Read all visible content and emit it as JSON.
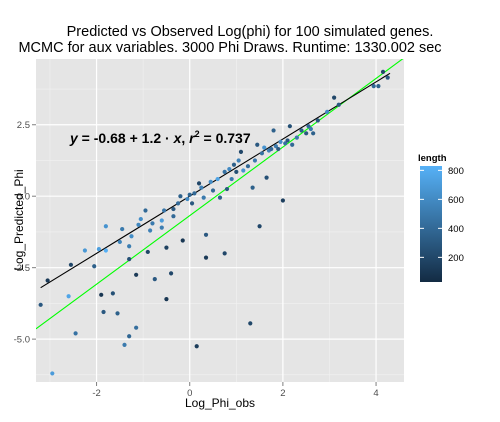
{
  "chart_data": {
    "type": "scatter",
    "title": "Predicted vs Observed Log(phi) for 100 simulated genes.",
    "subtitle": "MCMC for aux variables. 3000 Phi Draws. Runtime: 1330.002 sec",
    "xlabel": "Log_Phi_obs",
    "ylabel": "Log_Predicted_Phi",
    "xlim": [
      -3.3,
      4.6
    ],
    "ylim": [
      -6.5,
      4.8
    ],
    "x_ticks": [
      -2,
      0,
      2,
      4
    ],
    "x_tick_labels": [
      "-2",
      "0",
      "2",
      "4"
    ],
    "y_ticks": [
      -5.0,
      -2.5,
      0.0,
      2.5
    ],
    "y_tick_labels": [
      "-5.0",
      "-2.5",
      "0.0",
      "2.5"
    ],
    "grid": true,
    "legend_position": "right",
    "color_scale": {
      "title": "length",
      "min": 30,
      "max": 830,
      "ticks": [
        200,
        400,
        600,
        800
      ],
      "tick_labels": [
        "200",
        "400",
        "600",
        "800"
      ],
      "low_color": "#132b43",
      "high_color": "#56b1f7"
    },
    "annotation": {
      "y_sym": "y",
      "eq_sign": " = ",
      "intercept": "-0.68",
      "plus": " + ",
      "slope": "1.2",
      "dot": " · ",
      "x_sym": "x",
      "comma": ",  ",
      "r_sym": "r",
      "sup": "2",
      "r2": " = 0.737"
    },
    "lines": [
      {
        "kind": "regression_fit",
        "color": "#00ff00",
        "intercept": -0.68,
        "slope": 1.2,
        "x_range": [
          -3.3,
          4.6
        ]
      },
      {
        "kind": "identity",
        "color": "#000000",
        "intercept": 0,
        "slope": 1,
        "x_range": [
          -3.2,
          4.3
        ]
      }
    ],
    "points": [
      {
        "x": -3.2,
        "y": -3.8,
        "length": 300
      },
      {
        "x": -3.05,
        "y": -2.95,
        "length": 120
      },
      {
        "x": -2.95,
        "y": -6.2,
        "length": 700
      },
      {
        "x": -2.6,
        "y": -3.5,
        "length": 760
      },
      {
        "x": -2.55,
        "y": -2.4,
        "length": 200
      },
      {
        "x": -2.45,
        "y": -4.8,
        "length": 450
      },
      {
        "x": -2.25,
        "y": -1.9,
        "length": 680
      },
      {
        "x": -2.05,
        "y": -2.45,
        "length": 350
      },
      {
        "x": -1.95,
        "y": -1.85,
        "length": 720
      },
      {
        "x": -1.9,
        "y": -3.45,
        "length": 100
      },
      {
        "x": -1.85,
        "y": -4.05,
        "length": 300
      },
      {
        "x": -1.8,
        "y": -1.9,
        "length": 820
      },
      {
        "x": -1.8,
        "y": -1.05,
        "length": 650
      },
      {
        "x": -1.65,
        "y": -3.4,
        "length": 250
      },
      {
        "x": -1.55,
        "y": -4.1,
        "length": 350
      },
      {
        "x": -1.5,
        "y": -1.6,
        "length": 560
      },
      {
        "x": -1.45,
        "y": -1.15,
        "length": 500
      },
      {
        "x": -1.4,
        "y": -5.2,
        "length": 500
      },
      {
        "x": -1.3,
        "y": -4.9,
        "length": 380
      },
      {
        "x": -1.3,
        "y": -2.2,
        "length": 250
      },
      {
        "x": -1.25,
        "y": -1.4,
        "length": 620
      },
      {
        "x": -1.15,
        "y": -2.75,
        "length": 120
      },
      {
        "x": -1.15,
        "y": -4.6,
        "length": 430
      },
      {
        "x": -1.1,
        "y": -1.0,
        "length": 580
      },
      {
        "x": -1.05,
        "y": -0.8,
        "length": 620
      },
      {
        "x": -0.95,
        "y": -0.5,
        "length": 400
      },
      {
        "x": -0.9,
        "y": -1.95,
        "length": 200
      },
      {
        "x": -0.85,
        "y": -1.2,
        "length": 540
      },
      {
        "x": -0.8,
        "y": -0.95,
        "length": 500
      },
      {
        "x": -0.75,
        "y": -2.9,
        "length": 300
      },
      {
        "x": -0.6,
        "y": -1.1,
        "length": 520
      },
      {
        "x": -0.6,
        "y": -0.85,
        "length": 700
      },
      {
        "x": -0.55,
        "y": -0.5,
        "length": 480
      },
      {
        "x": -0.5,
        "y": -1.8,
        "length": 160
      },
      {
        "x": -0.5,
        "y": -3.6,
        "length": 100
      },
      {
        "x": -0.4,
        "y": -2.7,
        "length": 200
      },
      {
        "x": -0.35,
        "y": -0.7,
        "length": 400
      },
      {
        "x": -0.35,
        "y": -0.45,
        "length": 300
      },
      {
        "x": -0.25,
        "y": -0.25,
        "length": 420
      },
      {
        "x": -0.2,
        "y": 0.0,
        "length": 350
      },
      {
        "x": -0.15,
        "y": -1.55,
        "length": 100
      },
      {
        "x": -0.05,
        "y": -0.1,
        "length": 600
      },
      {
        "x": 0.0,
        "y": 0.05,
        "length": 380
      },
      {
        "x": 0.05,
        "y": -0.25,
        "length": 300
      },
      {
        "x": 0.1,
        "y": 0.1,
        "length": 400
      },
      {
        "x": 0.15,
        "y": -5.25,
        "length": 130
      },
      {
        "x": 0.2,
        "y": 0.45,
        "length": 200
      },
      {
        "x": 0.25,
        "y": 0.3,
        "length": 550
      },
      {
        "x": 0.3,
        "y": -0.05,
        "length": 500
      },
      {
        "x": 0.35,
        "y": -1.35,
        "length": 300
      },
      {
        "x": 0.35,
        "y": -2.15,
        "length": 120
      },
      {
        "x": 0.45,
        "y": 0.5,
        "length": 620
      },
      {
        "x": 0.5,
        "y": 0.2,
        "length": 400
      },
      {
        "x": 0.6,
        "y": 0.6,
        "length": 750
      },
      {
        "x": 0.65,
        "y": -0.05,
        "length": 350
      },
      {
        "x": 0.75,
        "y": 0.85,
        "length": 450
      },
      {
        "x": 0.75,
        "y": -2.0,
        "length": 200
      },
      {
        "x": 0.8,
        "y": 0.25,
        "length": 300
      },
      {
        "x": 0.85,
        "y": 0.95,
        "length": 600
      },
      {
        "x": 0.9,
        "y": 0.6,
        "length": 500
      },
      {
        "x": 0.95,
        "y": 1.1,
        "length": 350
      },
      {
        "x": 1.0,
        "y": 0.85,
        "length": 250
      },
      {
        "x": 1.05,
        "y": 1.25,
        "length": 550
      },
      {
        "x": 1.1,
        "y": 1.55,
        "length": 200
      },
      {
        "x": 1.15,
        "y": 0.9,
        "length": 650
      },
      {
        "x": 1.25,
        "y": 1.05,
        "length": 400
      },
      {
        "x": 1.3,
        "y": -4.45,
        "length": 200
      },
      {
        "x": 1.35,
        "y": 0.3,
        "length": 350
      },
      {
        "x": 1.4,
        "y": 1.25,
        "length": 500
      },
      {
        "x": 1.45,
        "y": 1.8,
        "length": 300
      },
      {
        "x": 1.5,
        "y": -1.05,
        "length": 200
      },
      {
        "x": 1.55,
        "y": 1.5,
        "length": 450
      },
      {
        "x": 1.6,
        "y": 1.7,
        "length": 650
      },
      {
        "x": 1.65,
        "y": 0.65,
        "length": 250
      },
      {
        "x": 1.7,
        "y": 1.6,
        "length": 550
      },
      {
        "x": 1.75,
        "y": 1.65,
        "length": 400
      },
      {
        "x": 1.8,
        "y": 2.3,
        "length": 350
      },
      {
        "x": 1.85,
        "y": 1.75,
        "length": 500
      },
      {
        "x": 1.9,
        "y": 1.65,
        "length": 300
      },
      {
        "x": 1.95,
        "y": 1.9,
        "length": 600
      },
      {
        "x": 2.0,
        "y": -0.15,
        "length": 150
      },
      {
        "x": 2.05,
        "y": 1.85,
        "length": 450
      },
      {
        "x": 2.1,
        "y": 1.95,
        "length": 300
      },
      {
        "x": 2.15,
        "y": 2.45,
        "length": 250
      },
      {
        "x": 2.2,
        "y": 1.8,
        "length": 400
      },
      {
        "x": 2.3,
        "y": 2.05,
        "length": 500
      },
      {
        "x": 2.4,
        "y": 2.3,
        "length": 350
      },
      {
        "x": 2.5,
        "y": 2.2,
        "length": 300
      },
      {
        "x": 2.55,
        "y": 2.45,
        "length": 400
      },
      {
        "x": 2.6,
        "y": 2.35,
        "length": 500
      },
      {
        "x": 2.65,
        "y": 2.2,
        "length": 350
      },
      {
        "x": 2.75,
        "y": 2.65,
        "length": 300
      },
      {
        "x": 2.95,
        "y": 2.95,
        "length": 600
      },
      {
        "x": 3.1,
        "y": 3.45,
        "length": 200
      },
      {
        "x": 3.2,
        "y": 3.2,
        "length": 300
      },
      {
        "x": 3.95,
        "y": 3.85,
        "length": 400
      },
      {
        "x": 4.05,
        "y": 3.85,
        "length": 350
      },
      {
        "x": 4.15,
        "y": 4.35,
        "length": 200
      },
      {
        "x": 4.25,
        "y": 4.15,
        "length": 300
      },
      {
        "x": -1.3,
        "y": -1.75,
        "length": 520
      }
    ]
  }
}
